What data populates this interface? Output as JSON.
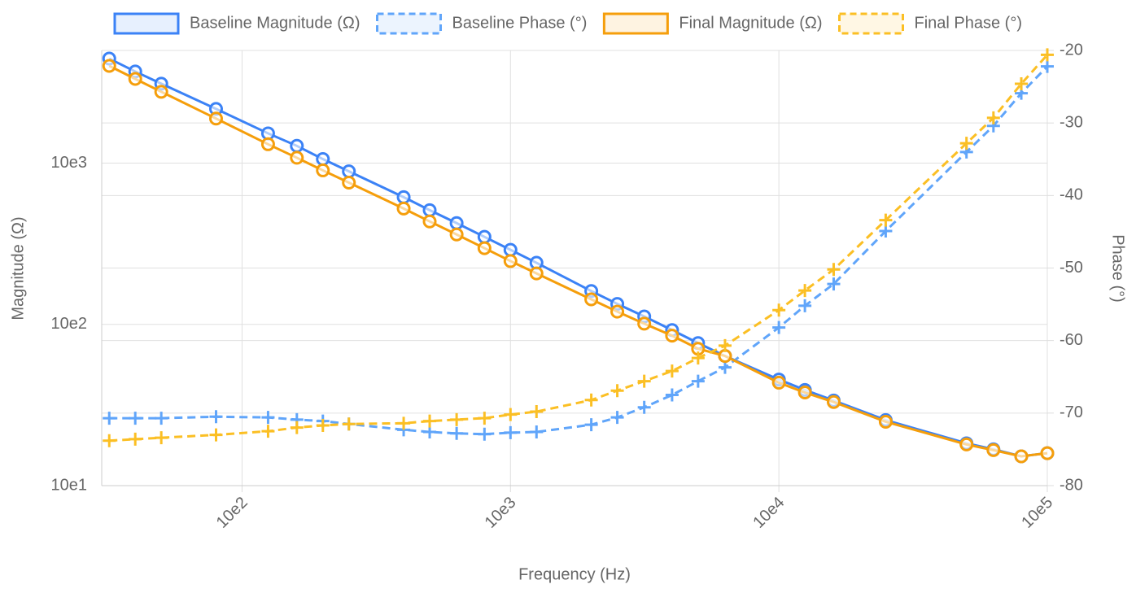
{
  "chart_data": {
    "type": "line",
    "x_label": "Frequency (Hz)",
    "y_label": "Magnitude (Ω)",
    "y2_label": "Phase (°)",
    "x_scale": "log",
    "y_scale": "log",
    "grid": true,
    "legend": "top",
    "x": [
      320,
      400,
      500,
      800,
      1250,
      1600,
      2000,
      2500,
      4000,
      5000,
      6300,
      8000,
      10000,
      12500,
      20000,
      25000,
      31500,
      40000,
      50000,
      63000,
      100000,
      125000,
      160000,
      250000,
      500000,
      630000,
      800000,
      1000000
    ],
    "xlim": [
      300,
      1000000
    ],
    "xticks": [
      {
        "value": 1000,
        "label": "10e2"
      },
      {
        "value": 10000,
        "label": "10e3"
      },
      {
        "value": 100000,
        "label": "10e4"
      },
      {
        "value": 1000000,
        "label": "10e5"
      }
    ],
    "ylim": [
      100,
      50000
    ],
    "yticks": [
      {
        "value": 100,
        "label": "10e1"
      },
      {
        "value": 1000,
        "label": "10e2"
      },
      {
        "value": 10000,
        "label": "10e3"
      }
    ],
    "y2lim": [
      -80,
      -20
    ],
    "y2ticks": [
      -20,
      -30,
      -40,
      -50,
      -60,
      -70,
      -80
    ],
    "series": [
      {
        "name": "Baseline Magnitude (Ω)",
        "color": "#3b82f6",
        "marker": "circle",
        "dashed": false,
        "values": [
          44500,
          37000,
          31100,
          21700,
          15300,
          12800,
          10600,
          8900,
          6150,
          5110,
          4250,
          3490,
          2900,
          2410,
          1610,
          1340,
          1120,
          922,
          766,
          637,
          455,
          392,
          337,
          255,
          183,
          168,
          152,
          159
        ]
      },
      {
        "name": "Baseline Phase (°)",
        "color": "#60a5fa",
        "marker": "cross",
        "dashed": true,
        "axis": "y2",
        "values": [
          -70.7,
          -70.7,
          -70.7,
          -70.5,
          -70.6,
          -70.9,
          -71.1,
          -71.5,
          -72.3,
          -72.6,
          -72.8,
          -72.9,
          -72.7,
          -72.6,
          -71.6,
          -70.6,
          -69.2,
          -67.5,
          -65.6,
          -63.7,
          -58.2,
          -55.2,
          -52.2,
          -44.9,
          -34.0,
          -30.4,
          -25.9,
          -22.2
        ]
      },
      {
        "name": "Final Magnitude (Ω)",
        "color": "#f59e0b",
        "marker": "circle",
        "dashed": false,
        "values": [
          40100,
          33300,
          27700,
          18900,
          13100,
          10800,
          9020,
          7570,
          5230,
          4350,
          3610,
          2970,
          2470,
          2070,
          1430,
          1200,
          1010,
          851,
          706,
          637,
          435,
          378,
          330,
          249,
          180,
          166,
          152,
          159
        ]
      },
      {
        "name": "Final Phase (°)",
        "color": "#fbbf24",
        "marker": "cross",
        "dashed": true,
        "axis": "y2",
        "values": [
          -73.8,
          -73.6,
          -73.4,
          -73.0,
          -72.5,
          -72.0,
          -71.7,
          -71.5,
          -71.4,
          -71.1,
          -70.9,
          -70.7,
          -70.2,
          -69.8,
          -68.2,
          -66.9,
          -65.6,
          -64.2,
          -62.4,
          -60.7,
          -55.8,
          -53.1,
          -50.2,
          -43.4,
          -32.8,
          -29.3,
          -24.6,
          -20.6
        ]
      }
    ]
  }
}
